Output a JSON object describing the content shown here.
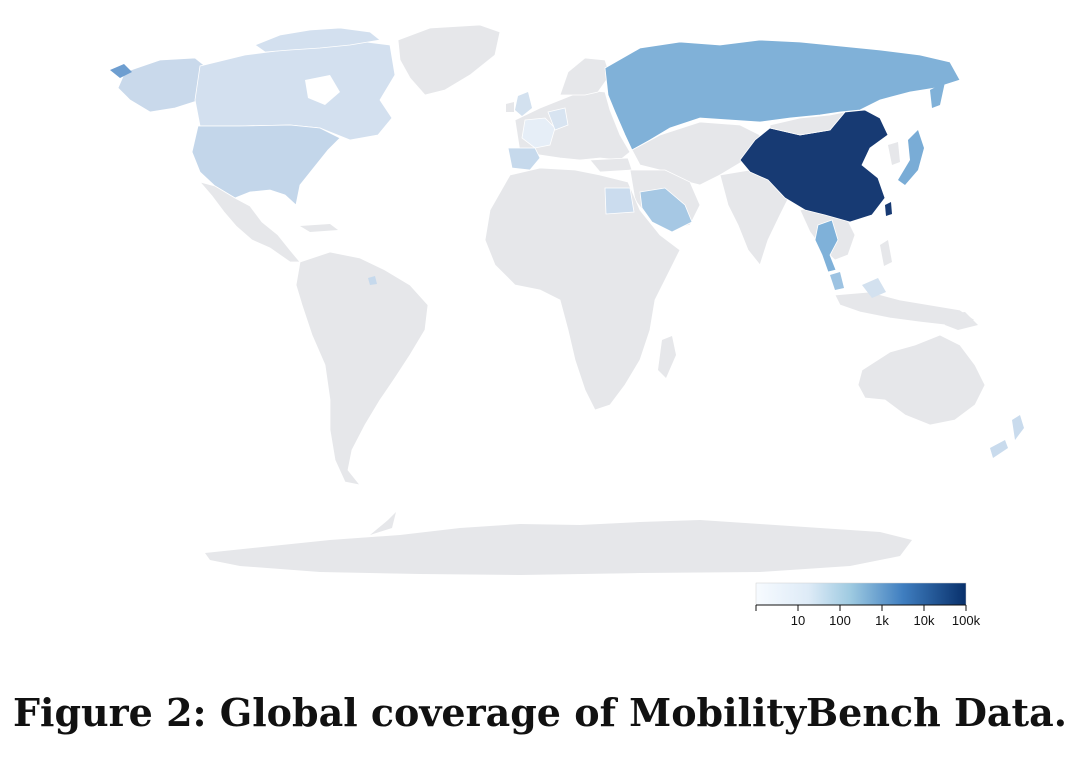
{
  "figure": {
    "caption": "Figure 2: Global coverage of MobilityBench Data."
  },
  "legend": {
    "scale": "log",
    "range": [
      1,
      100000
    ],
    "ticks": [
      "10",
      "100",
      "1k",
      "10k",
      "100k"
    ],
    "tick_values": [
      10,
      100,
      1000,
      10000,
      100000
    ],
    "colors": [
      "#f7fbff",
      "#c6dbef",
      "#6baed6",
      "#2171b5",
      "#08306b"
    ]
  },
  "colors": {
    "no_data": "#e6e7ea",
    "border": "#ffffff",
    "china": "#173a73",
    "russia": "#80b1d8",
    "japan": "#79acd6",
    "north_america": "#c9d9eb",
    "usa": "#c3d6ea",
    "saudi_arabia": "#a6c8e4",
    "egypt": "#cbdcee",
    "spain": "#c6d9ec",
    "france": "#e6eef7",
    "thailand": "#7fb1d9",
    "malaysia": "#9dc3e2",
    "new_zealand": "#c9dbed"
  }
}
